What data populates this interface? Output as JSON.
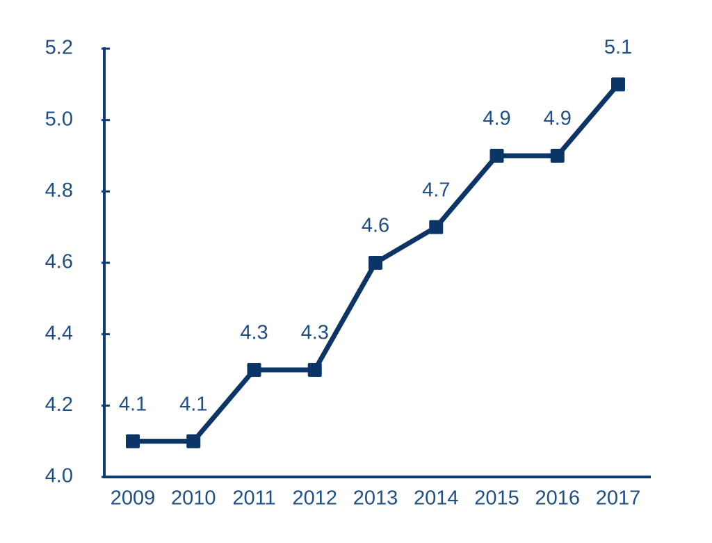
{
  "chart_data": {
    "type": "line",
    "categories": [
      "2009",
      "2010",
      "2011",
      "2012",
      "2013",
      "2014",
      "2015",
      "2016",
      "2017"
    ],
    "values": [
      4.1,
      4.1,
      4.3,
      4.3,
      4.6,
      4.7,
      4.9,
      4.9,
      5.1
    ],
    "color": "#0b3567",
    "ylim": [
      4.0,
      5.2
    ],
    "yticks": [
      {
        "value": 4,
        "label": "4.0"
      },
      4.2,
      4.4,
      4.6,
      4.8,
      {
        "value": 5,
        "label": "5.0"
      },
      5.2
    ],
    "grid": false
  }
}
